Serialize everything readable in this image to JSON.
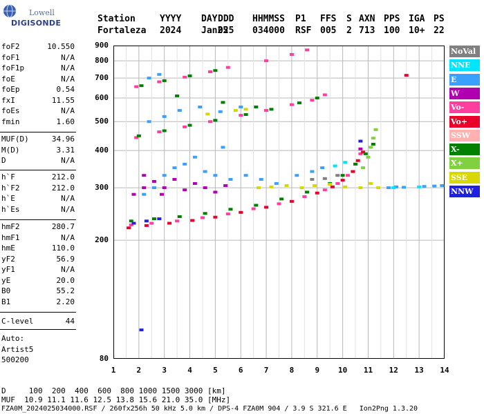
{
  "logo": {
    "line1": "Lowell",
    "line2": "DIGISONDE"
  },
  "header": {
    "row1": [
      "Station",
      "YYYY",
      "DAY",
      "DDD",
      "HHMMSS",
      "P1",
      "FFS",
      "S",
      "AXN",
      "PPS",
      "IGA",
      "PS"
    ],
    "row2": [
      "Fortaleza",
      "2024",
      "Jan25",
      "025",
      "034000",
      "RSF",
      "005",
      "2",
      "713",
      "100",
      "10+",
      "22"
    ]
  },
  "params_a": [
    {
      "k": "foF2",
      "v": "10.550"
    },
    {
      "k": "foF1",
      "v": "N/A"
    },
    {
      "k": "foF1p",
      "v": "N/A"
    },
    {
      "k": "foE",
      "v": "N/A"
    },
    {
      "k": "foEp",
      "v": "0.54"
    },
    {
      "k": "fxI",
      "v": "11.55"
    },
    {
      "k": "foEs",
      "v": "N/A"
    },
    {
      "k": "fmin",
      "v": "1.60"
    }
  ],
  "params_b": [
    {
      "k": "MUF(D)",
      "v": "34.96"
    },
    {
      "k": "M(D)",
      "v": "3.31"
    },
    {
      "k": "D",
      "v": "N/A"
    }
  ],
  "params_c": [
    {
      "k": "h`F",
      "v": "212.0"
    },
    {
      "k": "h`F2",
      "v": "212.0"
    },
    {
      "k": "h`E",
      "v": "N/A"
    },
    {
      "k": "h`Es",
      "v": "N/A"
    }
  ],
  "params_d": [
    {
      "k": "hmF2",
      "v": "280.7"
    },
    {
      "k": "hmF1",
      "v": "N/A"
    },
    {
      "k": "hmE",
      "v": "110.0"
    },
    {
      "k": "yF2",
      "v": "56.9"
    },
    {
      "k": "yF1",
      "v": "N/A"
    },
    {
      "k": "yE",
      "v": "20.0"
    },
    {
      "k": "B0",
      "v": "55.2"
    },
    {
      "k": "B1",
      "v": "2.20"
    }
  ],
  "params_e": [
    {
      "k": "C-level",
      "v": "44"
    }
  ],
  "autoscale": {
    "l1": "Auto:",
    "l2": "Artist5",
    "l3": "500200"
  },
  "legend": [
    {
      "label": "NoVal",
      "color": "#808080"
    },
    {
      "label": "NNE",
      "color": "#00e5ff"
    },
    {
      "label": "E",
      "color": "#3aa0ff"
    },
    {
      "label": "W",
      "color": "#b000b0"
    },
    {
      "label": "Vo-",
      "color": "#ff3fa0"
    },
    {
      "label": "Vo+",
      "color": "#e8002a"
    },
    {
      "label": "SSW",
      "color": "#ffb0b0"
    },
    {
      "label": "X-",
      "color": "#008000"
    },
    {
      "label": "X+",
      "color": "#80d040"
    },
    {
      "label": "SSE",
      "color": "#d8d800"
    },
    {
      "label": "NNW",
      "color": "#2020e0"
    }
  ],
  "footer": {
    "line1": "D     100  200  400  600  800 1000 1500 3000 [km]",
    "line2": "MUF  10.9 11.1 11.6 12.5 13.8 15.6 21.0 35.0 [MHz]",
    "line3": "FZA0M_2024025034000.RSF / 260fx256h 50 kHz 5.0 km / DPS-4 FZA0M 904 / 3.9 S 321.6 E   Ion2Png 1.3.20"
  },
  "chart_data": {
    "type": "scatter",
    "title": "",
    "xlabel": "",
    "ylabel": "",
    "xlim": [
      1,
      14
    ],
    "ylim": [
      80,
      900
    ],
    "y_scale": "log",
    "grid": true,
    "x_ticks": [
      1,
      2,
      3,
      4,
      5,
      6,
      7,
      8,
      9,
      10,
      11,
      12,
      13,
      14
    ],
    "y_ticks": [
      80,
      200,
      300,
      400,
      500,
      600,
      700,
      800,
      900
    ],
    "series": [
      {
        "name": "Vo-",
        "color": "#ff3fa0",
        "points": [
          [
            1.7,
            225
          ],
          [
            2.5,
            228
          ],
          [
            3.5,
            232
          ],
          [
            4.5,
            238
          ],
          [
            5.5,
            245
          ],
          [
            6.5,
            255
          ],
          [
            7.5,
            265
          ],
          [
            8.5,
            280
          ],
          [
            9.3,
            295
          ],
          [
            9.8,
            310
          ],
          [
            10.2,
            330
          ],
          [
            10.5,
            360
          ],
          [
            10.7,
            390
          ],
          [
            1.9,
            442
          ],
          [
            2.8,
            462
          ],
          [
            3.8,
            480
          ],
          [
            4.8,
            500
          ],
          [
            6,
            525
          ],
          [
            7,
            545
          ],
          [
            8,
            570
          ],
          [
            8.8,
            590
          ],
          [
            9.3,
            615
          ],
          [
            1.9,
            655
          ],
          [
            2.8,
            680
          ],
          [
            3.8,
            705
          ],
          [
            4.8,
            735
          ],
          [
            5.5,
            760
          ],
          [
            7,
            800
          ],
          [
            8,
            840
          ],
          [
            8.6,
            870
          ]
        ]
      },
      {
        "name": "Vo+",
        "color": "#e8002a",
        "points": [
          [
            1.6,
            220
          ],
          [
            2.3,
            224
          ],
          [
            3.2,
            228
          ],
          [
            4.1,
            233
          ],
          [
            5,
            239
          ],
          [
            6,
            248
          ],
          [
            7,
            258
          ],
          [
            8,
            270
          ],
          [
            9,
            288
          ],
          [
            9.6,
            302
          ],
          [
            10,
            318
          ],
          [
            10.4,
            340
          ],
          [
            10.6,
            370
          ],
          [
            10.8,
            395
          ],
          [
            12.5,
            715
          ]
        ]
      },
      {
        "name": "X-",
        "color": "#008000",
        "points": [
          [
            1.7,
            232
          ],
          [
            2.6,
            236
          ],
          [
            3.6,
            240
          ],
          [
            4.6,
            246
          ],
          [
            5.6,
            254
          ],
          [
            6.6,
            262
          ],
          [
            7.6,
            275
          ],
          [
            8.6,
            290
          ],
          [
            9.5,
            310
          ],
          [
            10,
            330
          ],
          [
            10.5,
            360
          ],
          [
            10.9,
            390
          ],
          [
            11.2,
            420
          ],
          [
            2,
            448
          ],
          [
            3,
            466
          ],
          [
            4,
            486
          ],
          [
            5,
            505
          ],
          [
            6.2,
            528
          ],
          [
            7.2,
            550
          ],
          [
            8.3,
            578
          ],
          [
            9,
            600
          ],
          [
            2.1,
            660
          ],
          [
            3,
            686
          ],
          [
            4,
            712
          ],
          [
            5,
            742
          ],
          [
            3.5,
            610
          ],
          [
            5.3,
            580
          ],
          [
            6.6,
            560
          ]
        ]
      },
      {
        "name": "X+",
        "color": "#80d040",
        "points": [
          [
            10.8,
            350
          ],
          [
            11,
            380
          ],
          [
            11.1,
            410
          ],
          [
            11.2,
            440
          ],
          [
            11.3,
            470
          ]
        ]
      },
      {
        "name": "W",
        "color": "#b000b0",
        "points": [
          [
            1.8,
            285
          ],
          [
            2.2,
            300
          ],
          [
            2.6,
            315
          ],
          [
            3,
            300
          ],
          [
            3.4,
            320
          ],
          [
            3.8,
            295
          ],
          [
            4.2,
            310
          ],
          [
            4.6,
            300
          ],
          [
            5,
            290
          ],
          [
            5.4,
            305
          ],
          [
            2.2,
            330
          ],
          [
            2.9,
            285
          ],
          [
            10.7,
            405
          ]
        ]
      },
      {
        "name": "E",
        "color": "#3aa0ff",
        "points": [
          [
            2.2,
            285
          ],
          [
            2.6,
            300
          ],
          [
            3,
            330
          ],
          [
            3.4,
            350
          ],
          [
            3.8,
            360
          ],
          [
            4.2,
            380
          ],
          [
            4.6,
            340
          ],
          [
            5,
            330
          ],
          [
            5.3,
            410
          ],
          [
            5.6,
            320
          ],
          [
            6.2,
            330
          ],
          [
            6.8,
            320
          ],
          [
            7.4,
            310
          ],
          [
            8.2,
            330
          ],
          [
            8.8,
            340
          ],
          [
            9.2,
            350
          ],
          [
            2.4,
            500
          ],
          [
            3,
            520
          ],
          [
            3.6,
            545
          ],
          [
            4.4,
            560
          ],
          [
            5.2,
            540
          ],
          [
            6,
            560
          ],
          [
            2.4,
            700
          ],
          [
            2.8,
            720
          ],
          [
            11.8,
            300
          ],
          [
            12.1,
            302
          ],
          [
            12.4,
            301
          ],
          [
            13.2,
            303
          ],
          [
            13.6,
            304
          ],
          [
            13.9,
            305
          ]
        ]
      },
      {
        "name": "SSE",
        "color": "#d8d800",
        "points": [
          [
            6.7,
            300
          ],
          [
            7.2,
            302
          ],
          [
            7.8,
            305
          ],
          [
            8.4,
            300
          ],
          [
            8.9,
            305
          ],
          [
            9.5,
            308
          ],
          [
            10.1,
            302
          ],
          [
            10.7,
            300
          ],
          [
            11.1,
            310
          ],
          [
            11.4,
            300
          ],
          [
            4.7,
            530
          ],
          [
            5.8,
            545
          ],
          [
            6.2,
            550
          ]
        ]
      },
      {
        "name": "NNE",
        "color": "#00e5ff",
        "points": [
          [
            9.7,
            355
          ],
          [
            10.1,
            365
          ],
          [
            12,
            300
          ],
          [
            13,
            302
          ]
        ]
      },
      {
        "name": "NNW",
        "color": "#2020e0",
        "points": [
          [
            1.8,
            228
          ],
          [
            2.3,
            232
          ],
          [
            2.8,
            236
          ],
          [
            2.1,
            100
          ],
          [
            10.7,
            430
          ]
        ]
      },
      {
        "name": "NoVal",
        "color": "#808080",
        "points": [
          [
            8.8,
            320
          ],
          [
            9.3,
            322
          ],
          [
            9.8,
            330
          ]
        ]
      }
    ]
  }
}
